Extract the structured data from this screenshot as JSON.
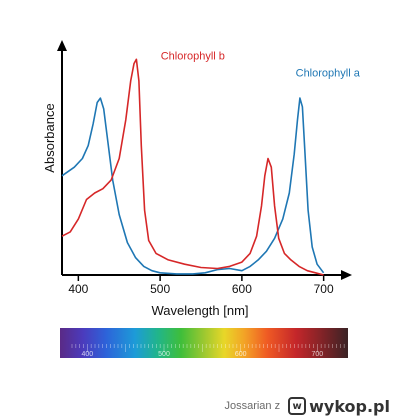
{
  "chart_data": {
    "type": "line",
    "title": "",
    "xlabel": "Wavelength [nm]",
    "ylabel": "Absorbance",
    "xlim": [
      380,
      720
    ],
    "ylim": [
      0,
      1.02
    ],
    "xticks": [
      400,
      500,
      600,
      700
    ],
    "grid": false,
    "series": [
      {
        "name": "Chlorophyll a",
        "color": "#1f77b4",
        "label_anchor": {
          "x": 705,
          "y": 0.92
        },
        "points": [
          [
            380,
            0.46
          ],
          [
            395,
            0.5
          ],
          [
            405,
            0.54
          ],
          [
            412,
            0.6
          ],
          [
            418,
            0.7
          ],
          [
            423,
            0.8
          ],
          [
            427,
            0.82
          ],
          [
            431,
            0.77
          ],
          [
            436,
            0.62
          ],
          [
            442,
            0.44
          ],
          [
            450,
            0.28
          ],
          [
            460,
            0.15
          ],
          [
            470,
            0.08
          ],
          [
            480,
            0.04
          ],
          [
            490,
            0.02
          ],
          [
            500,
            0.01
          ],
          [
            520,
            0.005
          ],
          [
            540,
            0.005
          ],
          [
            555,
            0.01
          ],
          [
            570,
            0.025
          ],
          [
            585,
            0.03
          ],
          [
            600,
            0.02
          ],
          [
            610,
            0.04
          ],
          [
            620,
            0.07
          ],
          [
            630,
            0.11
          ],
          [
            640,
            0.17
          ],
          [
            650,
            0.26
          ],
          [
            658,
            0.38
          ],
          [
            664,
            0.56
          ],
          [
            668,
            0.72
          ],
          [
            671,
            0.82
          ],
          [
            674,
            0.78
          ],
          [
            677,
            0.58
          ],
          [
            681,
            0.3
          ],
          [
            686,
            0.13
          ],
          [
            692,
            0.05
          ],
          [
            700,
            0.01
          ]
        ]
      },
      {
        "name": "Chlorophyll b",
        "color": "#d62728",
        "label_anchor": {
          "x": 540,
          "y": 1.0
        },
        "points": [
          [
            380,
            0.18
          ],
          [
            390,
            0.2
          ],
          [
            400,
            0.26
          ],
          [
            410,
            0.35
          ],
          [
            420,
            0.38
          ],
          [
            430,
            0.4
          ],
          [
            440,
            0.44
          ],
          [
            450,
            0.54
          ],
          [
            458,
            0.72
          ],
          [
            464,
            0.9
          ],
          [
            468,
            0.98
          ],
          [
            471,
            1.0
          ],
          [
            474,
            0.9
          ],
          [
            477,
            0.6
          ],
          [
            481,
            0.3
          ],
          [
            486,
            0.16
          ],
          [
            495,
            0.1
          ],
          [
            510,
            0.07
          ],
          [
            530,
            0.05
          ],
          [
            550,
            0.035
          ],
          [
            570,
            0.03
          ],
          [
            585,
            0.04
          ],
          [
            600,
            0.06
          ],
          [
            610,
            0.1
          ],
          [
            618,
            0.18
          ],
          [
            624,
            0.32
          ],
          [
            628,
            0.46
          ],
          [
            632,
            0.54
          ],
          [
            636,
            0.5
          ],
          [
            640,
            0.32
          ],
          [
            645,
            0.17
          ],
          [
            652,
            0.1
          ],
          [
            660,
            0.07
          ],
          [
            670,
            0.04
          ],
          [
            680,
            0.02
          ],
          [
            690,
            0.01
          ],
          [
            700,
            0.0
          ]
        ]
      }
    ]
  },
  "spectrum_bar": {
    "tick_labels": [
      "400",
      "500",
      "600",
      "700"
    ]
  },
  "footer": {
    "user": "Jossarian z",
    "logo_text": "wykop.pl",
    "logo_icon": "wykop-logo-icon"
  }
}
